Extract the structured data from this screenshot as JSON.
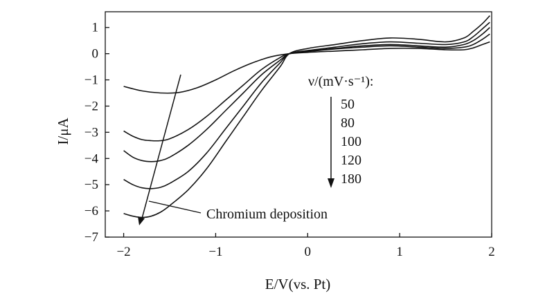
{
  "chart_data": {
    "type": "line",
    "title": "",
    "xlabel": "E/V(vs. Pt)",
    "ylabel": "I/μA",
    "xlim": [
      -2.2,
      2.0
    ],
    "ylim": [
      -7,
      1.6
    ],
    "xticks": [
      -2,
      -1,
      0,
      1,
      2
    ],
    "yticks": [
      1,
      0,
      -1,
      -2,
      -3,
      -4,
      -5,
      -6,
      -7
    ],
    "grid": false,
    "legend": {
      "title": "ν/(mV·s⁻¹):",
      "entries": [
        "50",
        "80",
        "100",
        "120",
        "180"
      ],
      "placement": "center-right"
    },
    "annotations": [
      {
        "text": "Chromium deposition"
      }
    ],
    "series": [
      {
        "values": [
          [
            -2.0,
            -1.25
          ],
          [
            -1.8,
            -1.42
          ],
          [
            -1.6,
            -1.5
          ],
          [
            -1.4,
            -1.48
          ],
          [
            -1.2,
            -1.3
          ],
          [
            -1.0,
            -1.0
          ],
          [
            -0.8,
            -0.65
          ],
          [
            -0.6,
            -0.35
          ],
          [
            -0.4,
            -0.12
          ],
          [
            -0.2,
            0.0
          ],
          [
            0.0,
            0.05
          ],
          [
            0.3,
            0.1
          ],
          [
            0.6,
            0.15
          ],
          [
            0.9,
            0.2
          ],
          [
            1.2,
            0.2
          ],
          [
            1.5,
            0.15
          ],
          [
            1.7,
            0.15
          ],
          [
            1.8,
            0.22
          ],
          [
            1.9,
            0.35
          ],
          [
            1.98,
            0.45
          ]
        ]
      },
      {
        "values": [
          [
            -2.0,
            -2.95
          ],
          [
            -1.9,
            -3.15
          ],
          [
            -1.8,
            -3.28
          ],
          [
            -1.7,
            -3.32
          ],
          [
            -1.6,
            -3.32
          ],
          [
            -1.5,
            -3.25
          ],
          [
            -1.3,
            -2.9
          ],
          [
            -1.1,
            -2.4
          ],
          [
            -0.9,
            -1.8
          ],
          [
            -0.7,
            -1.2
          ],
          [
            -0.5,
            -0.6
          ],
          [
            -0.3,
            -0.15
          ],
          [
            -0.2,
            0.0
          ],
          [
            0.0,
            0.08
          ],
          [
            0.3,
            0.18
          ],
          [
            0.6,
            0.25
          ],
          [
            0.9,
            0.3
          ],
          [
            1.2,
            0.25
          ],
          [
            1.5,
            0.2
          ],
          [
            1.7,
            0.25
          ],
          [
            1.8,
            0.35
          ],
          [
            1.9,
            0.55
          ],
          [
            1.98,
            0.75
          ]
        ]
      },
      {
        "values": [
          [
            -2.0,
            -3.7
          ],
          [
            -1.9,
            -3.95
          ],
          [
            -1.8,
            -4.08
          ],
          [
            -1.7,
            -4.12
          ],
          [
            -1.6,
            -4.08
          ],
          [
            -1.5,
            -3.95
          ],
          [
            -1.3,
            -3.5
          ],
          [
            -1.1,
            -2.9
          ],
          [
            -0.9,
            -2.2
          ],
          [
            -0.7,
            -1.5
          ],
          [
            -0.5,
            -0.8
          ],
          [
            -0.3,
            -0.25
          ],
          [
            -0.2,
            0.0
          ],
          [
            0.0,
            0.1
          ],
          [
            0.3,
            0.2
          ],
          [
            0.6,
            0.3
          ],
          [
            0.9,
            0.35
          ],
          [
            1.2,
            0.3
          ],
          [
            1.5,
            0.25
          ],
          [
            1.7,
            0.35
          ],
          [
            1.8,
            0.5
          ],
          [
            1.9,
            0.75
          ],
          [
            1.98,
            1.0
          ]
        ]
      },
      {
        "values": [
          [
            -2.0,
            -4.8
          ],
          [
            -1.9,
            -5.0
          ],
          [
            -1.8,
            -5.12
          ],
          [
            -1.7,
            -5.15
          ],
          [
            -1.6,
            -5.1
          ],
          [
            -1.5,
            -4.95
          ],
          [
            -1.3,
            -4.5
          ],
          [
            -1.1,
            -3.8
          ],
          [
            -0.9,
            -2.9
          ],
          [
            -0.7,
            -2.0
          ],
          [
            -0.5,
            -1.1
          ],
          [
            -0.3,
            -0.35
          ],
          [
            -0.2,
            0.0
          ],
          [
            0.0,
            0.12
          ],
          [
            0.3,
            0.25
          ],
          [
            0.6,
            0.38
          ],
          [
            0.9,
            0.45
          ],
          [
            1.2,
            0.4
          ],
          [
            1.5,
            0.35
          ],
          [
            1.7,
            0.45
          ],
          [
            1.8,
            0.65
          ],
          [
            1.9,
            0.95
          ],
          [
            1.98,
            1.2
          ]
        ]
      },
      {
        "values": [
          [
            -2.0,
            -6.1
          ],
          [
            -1.9,
            -6.2
          ],
          [
            -1.8,
            -6.25
          ],
          [
            -1.7,
            -6.2
          ],
          [
            -1.6,
            -6.05
          ],
          [
            -1.5,
            -5.8
          ],
          [
            -1.3,
            -5.2
          ],
          [
            -1.1,
            -4.4
          ],
          [
            -0.9,
            -3.4
          ],
          [
            -0.7,
            -2.4
          ],
          [
            -0.5,
            -1.4
          ],
          [
            -0.3,
            -0.5
          ],
          [
            -0.2,
            0.0
          ],
          [
            0.0,
            0.2
          ],
          [
            0.3,
            0.35
          ],
          [
            0.6,
            0.5
          ],
          [
            0.9,
            0.6
          ],
          [
            1.2,
            0.55
          ],
          [
            1.5,
            0.45
          ],
          [
            1.7,
            0.6
          ],
          [
            1.8,
            0.85
          ],
          [
            1.9,
            1.15
          ],
          [
            1.98,
            1.45
          ]
        ]
      }
    ]
  }
}
